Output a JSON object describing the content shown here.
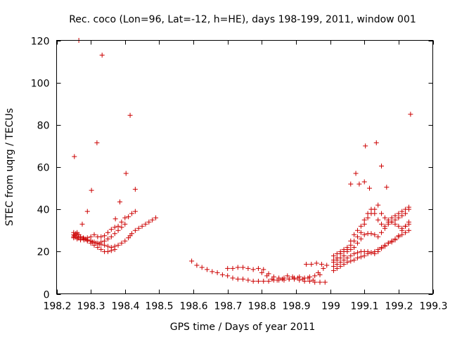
{
  "chart_data": {
    "type": "scatter",
    "title": "Rec. coco (Lon=96, Lat=-12, h=HE), days 198-199, 2011, window 001",
    "xlabel": "GPS time / Days of year 2011",
    "ylabel": "STEC from uqrg / TECUs",
    "xlim": [
      198.2,
      199.3
    ],
    "ylim": [
      0,
      120
    ],
    "xticks": [
      198.2,
      198.3,
      198.4,
      198.5,
      198.6,
      198.7,
      198.8,
      198.9,
      199,
      199.1,
      199.2,
      199.3
    ],
    "xtick_labels": [
      "198.2",
      "198.3",
      "198.4",
      "198.5",
      "198.6",
      "198.7",
      "198.8",
      "198.9",
      "199",
      "199.1",
      "199.2",
      "199.3"
    ],
    "yticks": [
      0,
      20,
      40,
      60,
      80,
      100,
      120
    ],
    "ytick_labels": [
      "0",
      "20",
      "40",
      "60",
      "80",
      "100",
      "120"
    ],
    "grid": false,
    "legend": "none",
    "marker": "plus",
    "color": "#cc0000",
    "series": [
      {
        "x": [
          198.25,
          198.252,
          198.256,
          198.26,
          198.265,
          198.27,
          198.278,
          198.285,
          198.29,
          198.3,
          198.305,
          198.315,
          198.325,
          198.33,
          198.34,
          198.35,
          198.36,
          198.37,
          198.38,
          198.39,
          198.4,
          198.41,
          198.415,
          198.42,
          198.43,
          198.44,
          198.45,
          198.46,
          198.47,
          198.48,
          198.49,
          198.25,
          198.256,
          198.263,
          198.27,
          198.28,
          198.29,
          198.3,
          198.31,
          198.32,
          198.33,
          198.34,
          198.35,
          198.36,
          198.37,
          198.38,
          198.39,
          198.4,
          198.25,
          198.26,
          198.27,
          198.28,
          198.29,
          198.3,
          198.31,
          198.32,
          198.33,
          198.34,
          198.35,
          198.36,
          198.37,
          198.25,
          198.26,
          198.27,
          198.28,
          198.29,
          198.3,
          198.31,
          198.32,
          198.33,
          198.34,
          198.35,
          198.36,
          198.37,
          198.38,
          198.39,
          198.4,
          198.41,
          198.42,
          198.43,
          198.252,
          198.265,
          198.275,
          198.29,
          198.302,
          198.318,
          198.333,
          198.372,
          198.385,
          198.403,
          198.415,
          198.43
        ],
        "y": [
          26.5,
          27.5,
          28.5,
          29,
          28,
          27,
          26.5,
          26,
          25.5,
          25,
          24.5,
          24,
          23.5,
          23.5,
          23,
          22.5,
          22,
          22.5,
          23,
          24,
          25,
          26.5,
          27.5,
          28.5,
          30,
          31,
          32,
          33,
          34,
          35,
          36,
          28,
          27,
          26.5,
          26,
          25.5,
          25.5,
          25,
          24.5,
          24,
          24.5,
          25,
          26,
          27,
          28.5,
          30,
          31.5,
          33,
          29,
          28,
          27,
          26,
          25,
          24,
          23,
          22,
          21,
          20,
          20,
          20.5,
          21,
          27,
          26,
          25.5,
          26,
          26.5,
          27,
          28,
          27,
          27,
          27.5,
          29,
          30.5,
          31.5,
          32,
          34,
          36,
          36.5,
          38,
          39,
          65,
          120,
          33,
          39,
          49,
          71.5,
          113,
          35.5,
          43.5,
          57,
          84.5,
          49.5
        ]
      },
      {
        "x": [
          198.595,
          198.61,
          198.625,
          198.64,
          198.655,
          198.67,
          198.685,
          198.7,
          198.715,
          198.73,
          198.745,
          198.76,
          198.775,
          198.79,
          198.805,
          198.82,
          198.835,
          198.85,
          198.865,
          198.88,
          198.895,
          198.91,
          198.925,
          198.94,
          198.955,
          198.97,
          198.985,
          198.7,
          198.715,
          198.73,
          198.745,
          198.76,
          198.775,
          198.79,
          198.805,
          198.82,
          198.835,
          198.85,
          198.865,
          198.88,
          198.895,
          198.91,
          198.925,
          198.94,
          198.955,
          198.97,
          198.8,
          198.815,
          198.83,
          198.845,
          198.86,
          198.875,
          198.89,
          198.905,
          198.92,
          198.935,
          198.95,
          198.965,
          198.98,
          198.93,
          198.945,
          198.96,
          198.975,
          198.99
        ],
        "y": [
          15.5,
          13.5,
          12.5,
          11.5,
          10.5,
          10,
          9,
          8.5,
          7.5,
          7,
          7,
          6.5,
          6,
          6,
          6,
          6,
          6.5,
          6.5,
          6.5,
          7,
          7,
          6.5,
          6,
          6,
          5.5,
          5.5,
          5.5,
          12,
          12,
          12.5,
          12.5,
          12,
          11.5,
          12,
          11.5,
          9.5,
          8,
          7.5,
          7.5,
          7,
          7.5,
          8,
          7.5,
          8,
          8.5,
          9,
          10,
          8.5,
          7,
          6.5,
          7,
          8.5,
          8,
          7.5,
          7,
          7.5,
          6.5,
          10,
          12,
          14,
          14,
          14.5,
          14,
          13.5
        ]
      },
      {
        "x": [
          199.01,
          199.02,
          199.03,
          199.04,
          199.05,
          199.06,
          199.07,
          199.08,
          199.09,
          199.1,
          199.11,
          199.12,
          199.13,
          199.14,
          199.15,
          199.16,
          199.17,
          199.18,
          199.19,
          199.2,
          199.21,
          199.22,
          199.23,
          199.01,
          199.02,
          199.03,
          199.04,
          199.05,
          199.06,
          199.07,
          199.08,
          199.09,
          199.1,
          199.11,
          199.12,
          199.13,
          199.14,
          199.15,
          199.16,
          199.17,
          199.18,
          199.19,
          199.2,
          199.21,
          199.22,
          199.23,
          199.01,
          199.02,
          199.03,
          199.04,
          199.05,
          199.06,
          199.07,
          199.08,
          199.09,
          199.1,
          199.11,
          199.12,
          199.13,
          199.14,
          199.15,
          199.16,
          199.17,
          199.18,
          199.19,
          199.2,
          199.21,
          199.22,
          199.23,
          199.01,
          199.02,
          199.03,
          199.04,
          199.05,
          199.06,
          199.07,
          199.08,
          199.09,
          199.1,
          199.11,
          199.12,
          199.13,
          199.14,
          199.15,
          199.16,
          199.17,
          199.18,
          199.19,
          199.2,
          199.21,
          199.22,
          199.23,
          199.01,
          199.02,
          199.03,
          199.04,
          199.05,
          199.06,
          199.07,
          199.08,
          199.09,
          199.1,
          199.11,
          199.12,
          199.13,
          199.14,
          199.15,
          199.16,
          199.17,
          199.18,
          199.19,
          199.2,
          199.21,
          199.22,
          199.23,
          199.06,
          199.075,
          199.085,
          199.1,
          199.103,
          199.115,
          199.135,
          199.15,
          199.165,
          199.235
        ],
        "y": [
          11,
          12,
          13,
          14,
          15,
          15.5,
          16,
          17,
          17.5,
          18,
          19,
          19.5,
          20,
          21,
          22,
          23,
          24,
          25,
          26,
          27,
          28,
          29,
          30,
          13,
          14,
          15,
          16,
          17,
          18,
          19,
          19.5,
          20,
          20,
          20,
          19.5,
          19,
          20,
          21.5,
          22.5,
          24,
          24.5,
          25.5,
          27.5,
          30,
          32,
          33,
          15,
          16,
          17,
          18,
          20,
          21,
          22,
          24,
          26,
          28,
          28.5,
          28.5,
          28,
          27,
          29,
          31,
          33,
          34,
          35,
          36,
          37,
          38,
          40,
          18,
          19,
          20,
          21,
          22,
          25,
          28,
          30,
          32,
          35,
          38,
          40,
          38,
          35,
          33,
          32,
          34,
          36,
          37,
          38,
          39,
          40,
          41,
          16,
          17,
          19,
          20,
          21,
          23,
          25,
          27,
          29,
          33,
          36,
          38,
          40,
          42,
          38,
          36,
          35,
          34,
          33,
          32,
          31,
          32,
          34,
          52,
          57,
          52,
          53,
          70,
          50,
          71.5,
          60.5,
          50.5,
          85
        ]
      }
    ]
  }
}
